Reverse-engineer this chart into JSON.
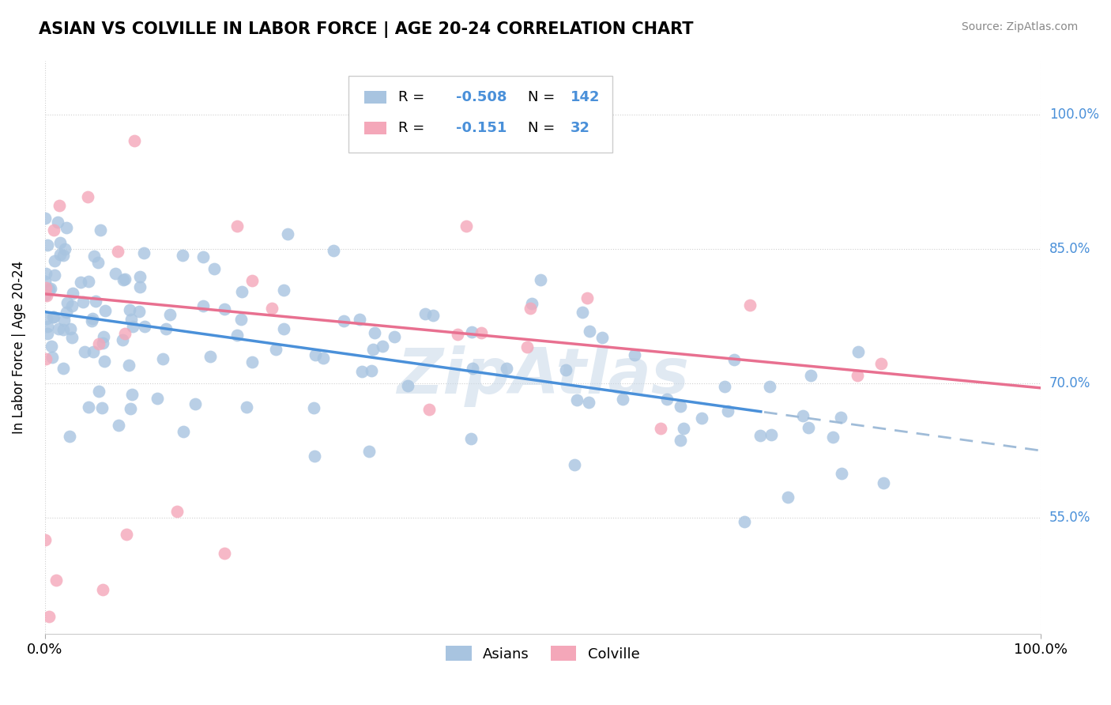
{
  "title": "ASIAN VS COLVILLE IN LABOR FORCE | AGE 20-24 CORRELATION CHART",
  "source": "Source: ZipAtlas.com",
  "ylabel": "In Labor Force | Age 20-24",
  "xlim": [
    0.0,
    1.0
  ],
  "ylim": [
    0.42,
    1.06
  ],
  "yticks": [
    0.55,
    0.7,
    0.85,
    1.0
  ],
  "ytick_labels": [
    "55.0%",
    "70.0%",
    "85.0%",
    "100.0%"
  ],
  "xtick_labels": [
    "0.0%",
    "100.0%"
  ],
  "xticks": [
    0.0,
    1.0
  ],
  "asian_color": "#a8c4e0",
  "colville_color": "#f4a7b9",
  "asian_N": 142,
  "colville_N": 32,
  "legend_label_asian": "Asians",
  "legend_label_colville": "Colville",
  "background_color": "#ffffff",
  "grid_color": "#d0d0d0",
  "trend_asian_color": "#4a90d9",
  "trend_colville_color": "#e87090",
  "trend_asian_dash_color": "#a0bcd8",
  "watermark": "ZipAtlas",
  "asian_intercept": 0.78,
  "asian_slope": -0.155,
  "asian_solid_max": 0.72,
  "colville_intercept": 0.8,
  "colville_slope": -0.105
}
